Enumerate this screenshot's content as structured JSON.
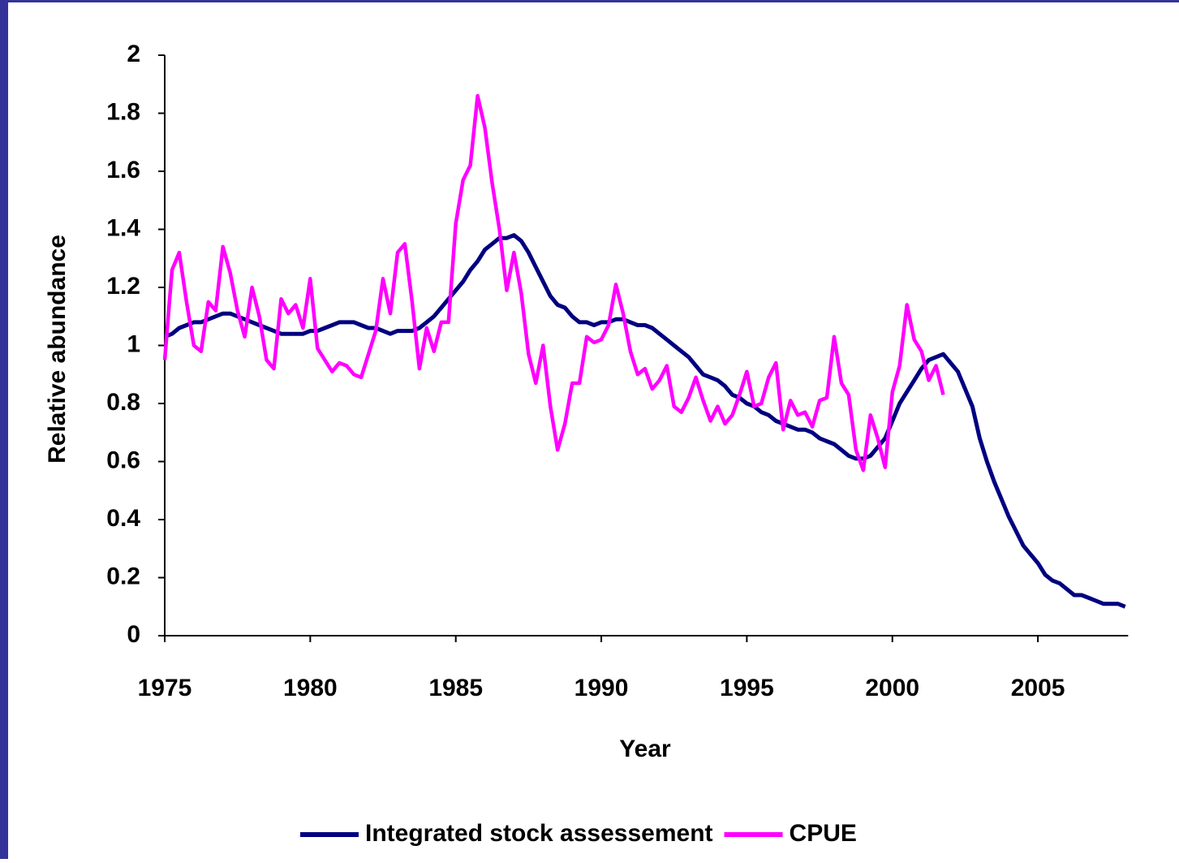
{
  "chart_data": {
    "type": "line",
    "x_label": "Year",
    "y_label": "Relative abundance",
    "x": [
      1975,
      1975.25,
      1975.5,
      1975.75,
      1976,
      1976.25,
      1976.5,
      1976.75,
      1977,
      1977.25,
      1977.5,
      1977.75,
      1978,
      1978.25,
      1978.5,
      1978.75,
      1979,
      1979.25,
      1979.5,
      1979.75,
      1980,
      1980.25,
      1980.5,
      1980.75,
      1981,
      1981.25,
      1981.5,
      1981.75,
      1982,
      1982.25,
      1982.5,
      1982.75,
      1983,
      1983.25,
      1983.5,
      1983.75,
      1984,
      1984.25,
      1984.5,
      1984.75,
      1985,
      1985.25,
      1985.5,
      1985.75,
      1986,
      1986.25,
      1986.5,
      1986.75,
      1987,
      1987.25,
      1987.5,
      1987.75,
      1988,
      1988.25,
      1988.5,
      1988.75,
      1989,
      1989.25,
      1989.5,
      1989.75,
      1990,
      1990.25,
      1990.5,
      1990.75,
      1991,
      1991.25,
      1991.5,
      1991.75,
      1992,
      1992.25,
      1992.5,
      1992.75,
      1993,
      1993.25,
      1993.5,
      1993.75,
      1994,
      1994.25,
      1994.5,
      1994.75,
      1995,
      1995.25,
      1995.5,
      1995.75,
      1996,
      1996.25,
      1996.5,
      1996.75,
      1997,
      1997.25,
      1997.5,
      1997.75,
      1998,
      1998.25,
      1998.5,
      1998.75,
      1999,
      1999.25,
      1999.5,
      1999.75,
      2000,
      2000.25,
      2000.5,
      2000.75,
      2001,
      2001.25,
      2001.5,
      2001.75,
      2002,
      2002.25,
      2002.5,
      2002.75,
      2003,
      2003.25,
      2003.5,
      2003.75,
      2004,
      2004.25,
      2004.5,
      2004.75,
      2005,
      2005.25,
      2005.5,
      2005.75,
      2006,
      2006.25,
      2006.5,
      2006.75,
      2007,
      2007.25,
      2007.5,
      2007.75,
      2008
    ],
    "series": [
      {
        "name": "Integrated stock assessement",
        "color": "#000080",
        "values": [
          1.03,
          1.04,
          1.06,
          1.07,
          1.08,
          1.08,
          1.09,
          1.1,
          1.11,
          1.11,
          1.1,
          1.09,
          1.08,
          1.07,
          1.06,
          1.05,
          1.04,
          1.04,
          1.04,
          1.04,
          1.05,
          1.05,
          1.06,
          1.07,
          1.08,
          1.08,
          1.08,
          1.07,
          1.06,
          1.06,
          1.05,
          1.04,
          1.05,
          1.05,
          1.05,
          1.06,
          1.08,
          1.1,
          1.13,
          1.16,
          1.19,
          1.22,
          1.26,
          1.29,
          1.33,
          1.35,
          1.37,
          1.37,
          1.38,
          1.36,
          1.32,
          1.27,
          1.22,
          1.17,
          1.14,
          1.13,
          1.1,
          1.08,
          1.08,
          1.07,
          1.08,
          1.08,
          1.09,
          1.09,
          1.08,
          1.07,
          1.07,
          1.06,
          1.04,
          1.02,
          1.0,
          0.98,
          0.96,
          0.93,
          0.9,
          0.89,
          0.88,
          0.86,
          0.83,
          0.82,
          0.8,
          0.79,
          0.77,
          0.76,
          0.74,
          0.73,
          0.72,
          0.71,
          0.71,
          0.7,
          0.68,
          0.67,
          0.66,
          0.64,
          0.62,
          0.61,
          0.61,
          0.62,
          0.65,
          0.68,
          0.74,
          0.8,
          0.84,
          0.88,
          0.92,
          0.95,
          0.96,
          0.97,
          0.94,
          0.91,
          0.85,
          0.79,
          0.68,
          0.6,
          0.53,
          0.47,
          0.41,
          0.36,
          0.31,
          0.28,
          0.25,
          0.21,
          0.19,
          0.18,
          0.16,
          0.14,
          0.14,
          0.13,
          0.12,
          0.11,
          0.11,
          0.11,
          0.1
        ]
      },
      {
        "name": "CPUE",
        "color": "#FF00FF",
        "values": [
          0.95,
          1.26,
          1.32,
          1.15,
          1.0,
          0.98,
          1.15,
          1.12,
          1.34,
          1.25,
          1.12,
          1.03,
          1.2,
          1.1,
          0.95,
          0.92,
          1.16,
          1.11,
          1.14,
          1.06,
          1.23,
          0.99,
          0.95,
          0.91,
          0.94,
          0.93,
          0.9,
          0.89,
          0.97,
          1.05,
          1.23,
          1.11,
          1.32,
          1.35,
          1.15,
          0.92,
          1.06,
          0.98,
          1.08,
          1.08,
          1.42,
          1.57,
          1.62,
          1.86,
          1.75,
          1.56,
          1.4,
          1.19,
          1.32,
          1.18,
          0.97,
          0.87,
          1.0,
          0.79,
          0.64,
          0.73,
          0.87,
          0.87,
          1.03,
          1.01,
          1.02,
          1.07,
          1.21,
          1.11,
          0.98,
          0.9,
          0.92,
          0.85,
          0.88,
          0.93,
          0.79,
          0.77,
          0.82,
          0.89,
          0.81,
          0.74,
          0.79,
          0.73,
          0.76,
          0.83,
          0.91,
          0.79,
          0.8,
          0.89,
          0.94,
          0.71,
          0.81,
          0.76,
          0.77,
          0.72,
          0.81,
          0.82,
          1.03,
          0.87,
          0.83,
          0.64,
          0.57,
          0.76,
          0.68,
          0.58,
          0.84,
          0.93,
          1.14,
          1.02,
          0.98,
          0.88,
          0.93,
          0.83,
          null,
          null,
          null,
          null,
          null,
          null,
          null,
          null,
          null,
          null,
          null,
          null,
          null,
          null,
          null,
          null,
          null,
          null,
          null,
          null,
          null,
          null,
          null,
          null,
          null
        ]
      }
    ],
    "xlim": [
      1975,
      2008.1
    ],
    "xticks": [
      1975,
      1980,
      1985,
      1990,
      1995,
      2000,
      2005
    ],
    "ylim": [
      0,
      2
    ],
    "yticks": [
      0,
      0.2,
      0.4,
      0.6,
      0.8,
      1,
      1.2,
      1.4,
      1.6,
      1.8,
      2
    ],
    "legend": "bottom"
  }
}
